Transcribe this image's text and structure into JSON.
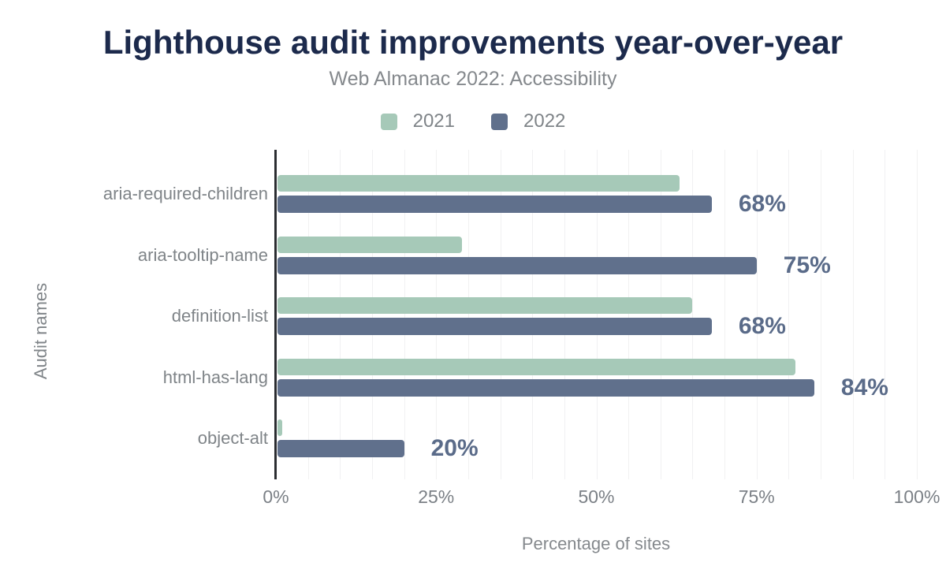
{
  "chart_data": {
    "type": "bar",
    "orientation": "horizontal",
    "title": "Lighthouse audit improvements year-over-year",
    "subtitle": "Web Almanac 2022: Accessibility",
    "xlabel": "Percentage of sites",
    "ylabel": "Audit names",
    "categories": [
      "aria-required-children",
      "aria-tooltip-name",
      "definition-list",
      "html-has-lang",
      "object-alt"
    ],
    "series": [
      {
        "name": "2021",
        "color": "#a6c9b8",
        "values": [
          63,
          29,
          65,
          81,
          1
        ]
      },
      {
        "name": "2022",
        "color": "#60708c",
        "values": [
          68,
          75,
          68,
          84,
          20
        ],
        "data_labels": [
          "68%",
          "75%",
          "68%",
          "84%",
          "20%"
        ]
      }
    ],
    "xlim": [
      0,
      100
    ],
    "xticks": {
      "values": [
        0,
        25,
        50,
        75,
        100
      ],
      "labels": [
        "0%",
        "25%",
        "50%",
        "75%",
        "100%"
      ]
    },
    "gridline_step_pct": 5,
    "grid": true,
    "legend_position": "top",
    "colors": {
      "title": "#1c2a4c",
      "subtitle": "#85898d",
      "axis_text": "#7b8086",
      "category_text": "#7f8488",
      "value_label": "#5a6b89",
      "axis_line": "#2b2d31",
      "gridline": "#f1f1f2",
      "background": "#ffffff"
    }
  }
}
